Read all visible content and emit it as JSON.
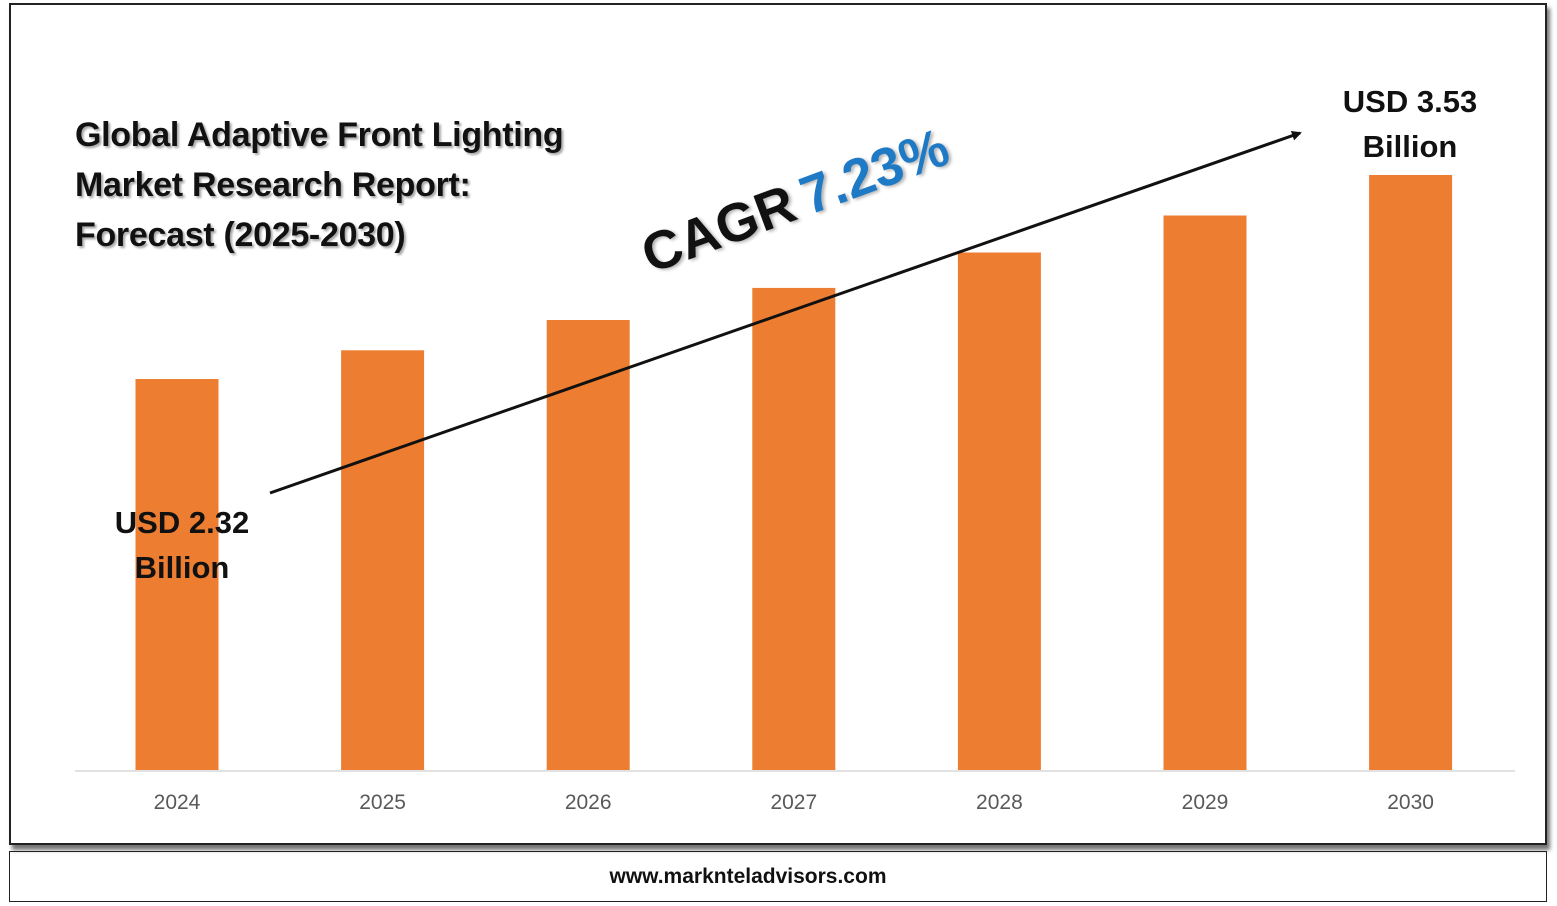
{
  "title_lines": [
    "Global Adaptive Front Lighting",
    "Market Research Report:",
    "Forecast (2025-2030)"
  ],
  "cagr": {
    "label": "CAGR",
    "value": "7.23%"
  },
  "callouts": {
    "start": {
      "line1": "USD 2.32",
      "line2": "Billion"
    },
    "end": {
      "line1": "USD 3.53",
      "line2": "Billion"
    }
  },
  "footer": "www.marknteladvisors.com",
  "colors": {
    "bar": "#ed7d31",
    "cagr_value": "#1f7ac6",
    "axis": "#d9d9d9",
    "tick_text": "#595959"
  },
  "chart_data": {
    "type": "bar",
    "categories": [
      "2024",
      "2025",
      "2026",
      "2027",
      "2028",
      "2029",
      "2030"
    ],
    "values": [
      2.32,
      2.49,
      2.67,
      2.86,
      3.07,
      3.29,
      3.53
    ],
    "ylim": [
      0,
      3.53
    ],
    "grid": false
  }
}
